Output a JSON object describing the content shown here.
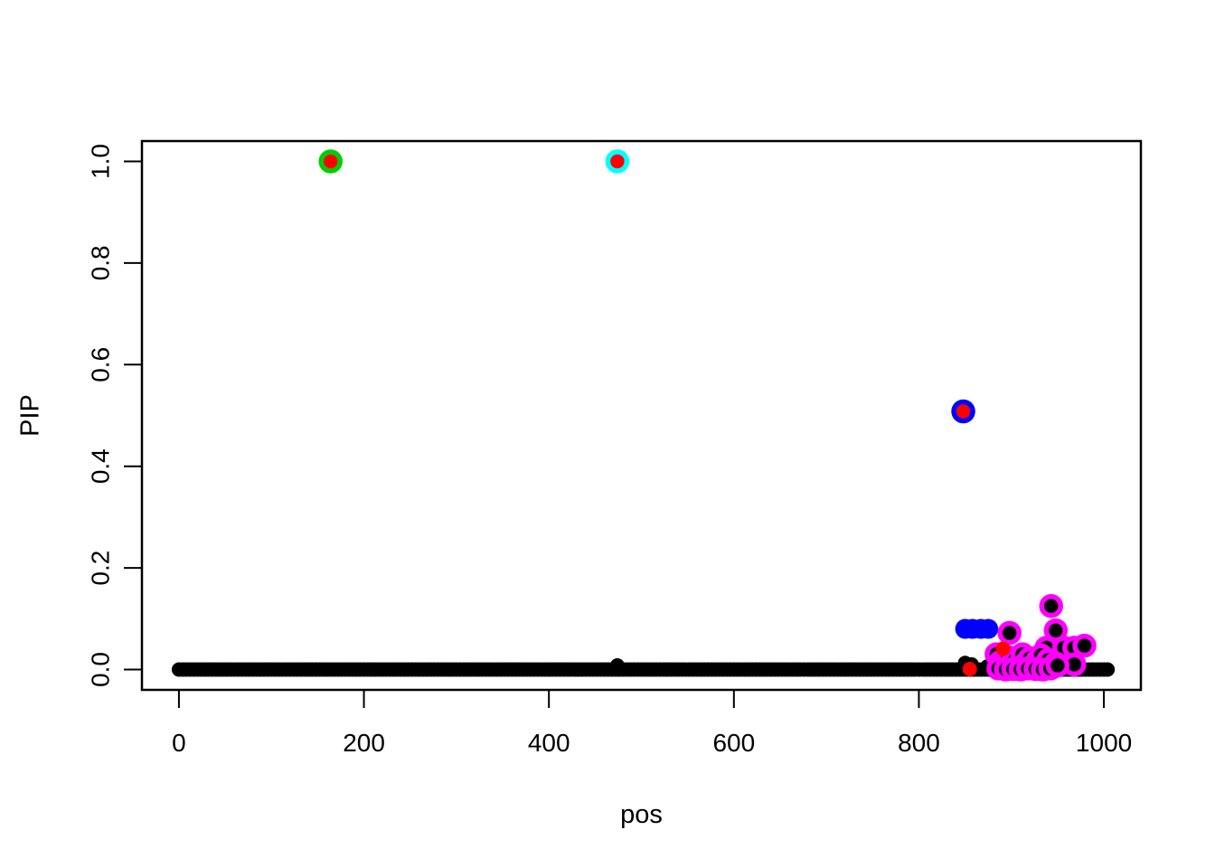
{
  "figure": {
    "background": "#ffffff",
    "border_color": "#000000"
  },
  "axes": {
    "xlabel": "pos",
    "ylabel": "PIP",
    "x_tick_labels": [
      "0",
      "200",
      "400",
      "600",
      "800",
      "1000"
    ],
    "x_tick_values": [
      0,
      200,
      400,
      600,
      800,
      1000
    ],
    "y_tick_labels": [
      "0.0",
      "0.2",
      "0.4",
      "0.6",
      "0.8",
      "1.0"
    ],
    "y_tick_values": [
      0.0,
      0.2,
      0.4,
      0.6,
      0.8,
      1.0
    ]
  },
  "colors": {
    "black": "#000000",
    "red": "#FF0000",
    "green": "#00CD00",
    "cyan": "#00FFFF",
    "blue": "#0000FF",
    "magenta": "#FF00FF"
  },
  "chart_data": {
    "type": "scatter",
    "title": "",
    "xlabel": "pos",
    "ylabel": "PIP",
    "xlim": [
      -40,
      1040
    ],
    "ylim": [
      -0.04,
      1.04
    ],
    "grid": false,
    "legend": "none",
    "series": [
      {
        "name": "all-variants-black",
        "marker": "point",
        "color": "#000000",
        "baseline": {
          "x_from": 0,
          "x_to": 1004,
          "y": 0.0,
          "step": 4
        },
        "points": [
          [
            474,
            0.008
          ],
          [
            850,
            0.013
          ],
          [
            857,
            0.01
          ],
          [
            874,
            0.006
          ]
        ]
      },
      {
        "name": "blue-credible-set-cluster",
        "marker": "point",
        "color": "#0000FF",
        "points": [
          [
            850,
            0.08
          ],
          [
            858,
            0.08
          ],
          [
            867,
            0.08
          ],
          [
            875,
            0.08
          ]
        ]
      },
      {
        "name": "magenta-credible-set-ringed",
        "marker": "ring",
        "color": "#FF00FF",
        "center_color": "#000000",
        "points": [
          [
            898,
            0.072
          ],
          [
            943,
            0.125
          ],
          [
            948,
            0.077
          ],
          [
            938,
            0.043
          ],
          [
            957,
            0.043
          ],
          [
            968,
            0.043
          ],
          [
            979,
            0.047
          ],
          [
            968,
            0.01
          ],
          [
            884,
            0.03
          ],
          [
            888,
            0.015
          ],
          [
            892,
            0.005
          ],
          [
            896,
            0.025
          ],
          [
            900,
            0.01
          ],
          [
            904,
            0.02
          ],
          [
            908,
            0.004
          ],
          [
            912,
            0.03
          ],
          [
            916,
            0.013
          ],
          [
            920,
            0.022
          ],
          [
            924,
            0.006
          ],
          [
            928,
            0.017
          ],
          [
            932,
            0.028
          ],
          [
            936,
            0.008
          ],
          [
            940,
            0.019
          ],
          [
            944,
            0.004
          ],
          [
            948,
            0.012
          ],
          [
            886,
            0.002
          ],
          [
            894,
            0.0
          ],
          [
            902,
            0.001
          ],
          [
            910,
            0.0
          ],
          [
            918,
            0.002
          ],
          [
            926,
            0.001
          ],
          [
            934,
            0.0
          ],
          [
            942,
            0.002
          ],
          [
            950,
            0.008
          ]
        ]
      },
      {
        "name": "true-effect-red-points",
        "marker": "point",
        "color": "#FF0000",
        "points": [
          [
            164,
            1.0
          ],
          [
            474,
            1.0
          ],
          [
            848,
            0.508
          ],
          [
            891,
            0.041
          ],
          [
            855,
            0.001
          ]
        ]
      },
      {
        "name": "green-credible-set-ring",
        "marker": "ring",
        "color": "#00CD00",
        "center_color": null,
        "points": [
          [
            164,
            1.0
          ]
        ]
      },
      {
        "name": "cyan-credible-set-ring",
        "marker": "ring",
        "color": "#00FFFF",
        "center_color": null,
        "points": [
          [
            474,
            1.0
          ]
        ]
      },
      {
        "name": "blue-credible-set-ring",
        "marker": "ring",
        "color": "#0000FF",
        "center_color": null,
        "points": [
          [
            848,
            0.508
          ]
        ]
      }
    ]
  }
}
